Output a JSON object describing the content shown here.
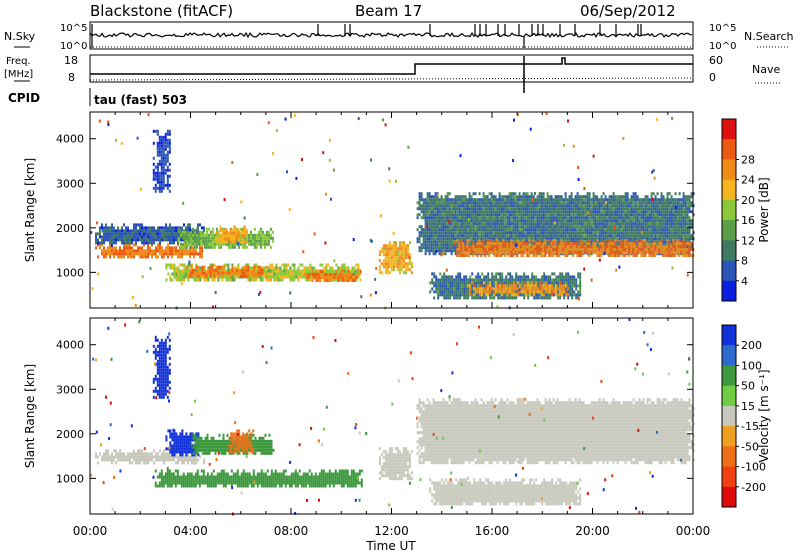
{
  "header": {
    "title": "Blackstone (fitACF)",
    "beam": "Beam 17",
    "date": "06/Sep/2012"
  },
  "summary": {
    "nsky_label": "N.Sky",
    "nsearch_label": "N.Search",
    "nsky_ticks": [
      "10^5",
      "10^0"
    ],
    "nsky_right_ticks": [
      "10^5",
      "10^0"
    ],
    "freq_label_top": "Freq.",
    "freq_label_unit": "[MHz]",
    "freq_ticks": [
      "18",
      "8"
    ],
    "nave_label": "Nave",
    "nave_ticks": [
      "60",
      "0"
    ],
    "cpid_label": "CPID",
    "cpid_text": "tau (fast) 503"
  },
  "colors": {
    "power_scale": [
      "#0a1fe0",
      "#2b55b8",
      "#3e7a62",
      "#5aa048",
      "#8cc83a",
      "#f5b51e",
      "#f08a18",
      "#ef5a12",
      "#e01010"
    ],
    "velocity_scale": [
      "#1030d8",
      "#2c6ad0",
      "#3c9a3c",
      "#70cc40",
      "#c8c8bc",
      "#f0a020",
      "#f07018",
      "#f04010",
      "#e00a0a"
    ],
    "ground_scatter": "#c8c8bc"
  },
  "chart_data": [
    {
      "type": "heatmap",
      "name": "power",
      "ylabel": "Slant Range [km]",
      "yticks": [
        "1000",
        "2000",
        "3000",
        "4000"
      ],
      "ylim": [
        200,
        4600
      ],
      "xlim": [
        0,
        24
      ],
      "colorbar": {
        "label": "Power [dB]",
        "ticks": [
          "4",
          "8",
          "12",
          "16",
          "20",
          "24",
          "28"
        ]
      },
      "blobs": [
        {
          "t0": 0.2,
          "t1": 4.5,
          "r0": 1350,
          "r1": 1650,
          "v": 26
        },
        {
          "t0": 0.2,
          "t1": 4.5,
          "r0": 1650,
          "r1": 2100,
          "v": 8
        },
        {
          "t0": 3.5,
          "t1": 7.3,
          "r0": 1550,
          "r1": 2000,
          "v": 16
        },
        {
          "t0": 5.0,
          "t1": 6.2,
          "r0": 1650,
          "r1": 2050,
          "v": 22
        },
        {
          "t0": 3.0,
          "t1": 10.8,
          "r0": 800,
          "r1": 1200,
          "v": 18
        },
        {
          "t0": 3.8,
          "t1": 7.0,
          "r0": 900,
          "r1": 1150,
          "v": 26
        },
        {
          "t0": 8.5,
          "t1": 10.8,
          "r0": 800,
          "r1": 1050,
          "v": 26
        },
        {
          "t0": 2.5,
          "t1": 3.2,
          "r0": 2800,
          "r1": 4200,
          "v": 6
        },
        {
          "t0": 11.5,
          "t1": 12.8,
          "r0": 1000,
          "r1": 1700,
          "v": 22
        },
        {
          "t0": 13.0,
          "t1": 24.0,
          "r0": 1400,
          "r1": 2800,
          "v": 10
        },
        {
          "t0": 14.5,
          "t1": 24.0,
          "r0": 1350,
          "r1": 1750,
          "v": 26
        },
        {
          "t0": 13.5,
          "t1": 19.5,
          "r0": 400,
          "r1": 1000,
          "v": 10
        },
        {
          "t0": 15.0,
          "t1": 19.0,
          "r0": 500,
          "r1": 800,
          "v": 24
        }
      ]
    },
    {
      "type": "heatmap",
      "name": "velocity",
      "ylabel": "Slant Range [km]",
      "yticks": [
        "1000",
        "2000",
        "3000",
        "4000"
      ],
      "ylim": [
        200,
        4600
      ],
      "xlim": [
        0,
        24
      ],
      "colorbar": {
        "label": "Velocity [m s⁻¹]",
        "ticks": [
          "200",
          "100",
          "50",
          "15",
          "-15",
          "-50",
          "-100",
          "-200"
        ]
      },
      "blobs": [
        {
          "t0": 0.2,
          "t1": 4.5,
          "r0": 1350,
          "r1": 1650,
          "v": 0
        },
        {
          "t0": 3.0,
          "t1": 4.3,
          "r0": 1500,
          "r1": 2100,
          "v": 200
        },
        {
          "t0": 4.0,
          "t1": 7.3,
          "r0": 1550,
          "r1": 2000,
          "v": 60
        },
        {
          "t0": 5.5,
          "t1": 6.5,
          "r0": 1600,
          "r1": 2100,
          "v": -60
        },
        {
          "t0": 2.5,
          "t1": 3.2,
          "r0": 2800,
          "r1": 4200,
          "v": 200
        },
        {
          "t0": 2.5,
          "t1": 10.8,
          "r0": 800,
          "r1": 1200,
          "v": 60
        },
        {
          "t0": 11.5,
          "t1": 12.8,
          "r0": 1000,
          "r1": 1700,
          "v": 0
        },
        {
          "t0": 13.0,
          "t1": 24.0,
          "r0": 1350,
          "r1": 2800,
          "v": 0
        },
        {
          "t0": 13.5,
          "t1": 19.5,
          "r0": 400,
          "r1": 1000,
          "v": 0
        }
      ]
    }
  ],
  "xaxis": {
    "label": "Time UT",
    "ticks": [
      "00:00",
      "04:00",
      "08:00",
      "12:00",
      "16:00",
      "20:00",
      "00:00"
    ],
    "range_hours": [
      0,
      24
    ]
  }
}
